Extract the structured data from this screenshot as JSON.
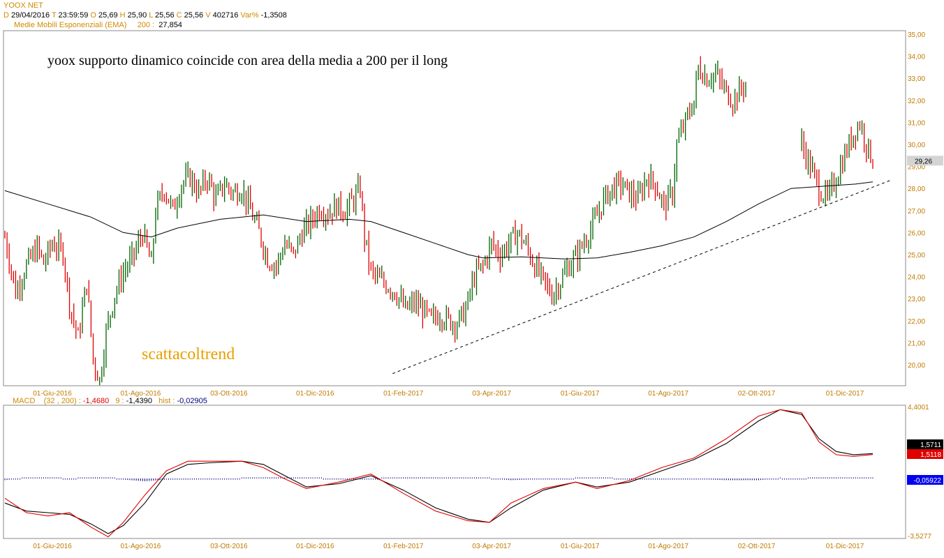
{
  "header": {
    "symbol": "YOOX NET",
    "d_label": "D",
    "date": "29/04/2016",
    "t_label": "T",
    "time": "23:59:59",
    "o_label": "O",
    "open": "25,69",
    "h_label": "H",
    "high": "25,90",
    "l_label": "L",
    "low": "25,56",
    "c_label": "C",
    "close": "25,56",
    "v_label": "V",
    "volume": "402716",
    "var_label": "Var%",
    "var": "-1,3508",
    "ema_label": "Medie Mobili Esponenziali (EMA)",
    "ema_period": "200 :",
    "ema_value": "27,854"
  },
  "annotations": {
    "title_text": "yoox supporto dinamico coincide con area della media a 200 per il long",
    "watermark": "scattacoltrend"
  },
  "macd_header": {
    "label": "MACD",
    "params": "(32 , 200) :",
    "macd_value": "-1,4680",
    "signal_label": "9 :",
    "signal_value": "-1,4390",
    "hist_label": "hist :",
    "hist_value": "-0,02905"
  },
  "colors": {
    "up": "#006400",
    "down": "#e00000",
    "ema": "#000000",
    "macd": "#000000",
    "signal": "#e00000",
    "hist": "#000080",
    "axis_text": "#c07a00",
    "last_price_bg": "#d4d4d4"
  },
  "chart_data": [
    {
      "type": "candlestick",
      "title": "",
      "x_tick_labels": [
        "01-Giu-2016",
        "01-Ago-2016",
        "03-Ott-2016",
        "01-Dic-2016",
        "01-Feb-2017",
        "03-Apr-2017",
        "01-Giu-2017",
        "01-Ago-2017",
        "02-Ott-2017",
        "01-Dic-2017"
      ],
      "y_tick_labels": [
        "20,00",
        "21,00",
        "22,00",
        "23,00",
        "24,00",
        "25,00",
        "26,00",
        "27,00",
        "28,00",
        "29,00",
        "30,00",
        "31,00",
        "32,00",
        "33,00",
        "34,00",
        "35,00"
      ],
      "ylim": [
        19.0,
        35.0
      ],
      "last_price_label": "29,26",
      "close_path": [
        [
          0,
          25.8
        ],
        [
          5,
          23.3
        ],
        [
          10,
          24.5
        ],
        [
          15,
          25.3
        ],
        [
          18,
          24.6
        ],
        [
          22,
          25.5
        ],
        [
          27,
          25.1
        ],
        [
          30,
          22.8
        ],
        [
          34,
          21.2
        ],
        [
          38,
          23.8
        ],
        [
          41,
          20.2
        ],
        [
          44,
          19.3
        ],
        [
          47,
          21.5
        ],
        [
          51,
          23.2
        ],
        [
          55,
          24.2
        ],
        [
          60,
          25.0
        ],
        [
          64,
          26.0
        ],
        [
          68,
          24.5
        ],
        [
          70,
          27.0
        ],
        [
          74,
          28.0
        ],
        [
          78,
          27.0
        ],
        [
          82,
          28.2
        ],
        [
          86,
          28.5
        ],
        [
          90,
          27.8
        ],
        [
          94,
          28.5
        ],
        [
          98,
          27.5
        ],
        [
          102,
          28.2
        ],
        [
          106,
          27.8
        ],
        [
          110,
          28.0
        ],
        [
          114,
          27.0
        ],
        [
          118,
          26.0
        ],
        [
          122,
          24.8
        ],
        [
          126,
          24.5
        ],
        [
          130,
          25.5
        ],
        [
          134,
          25.0
        ],
        [
          138,
          26.0
        ],
        [
          142,
          26.5
        ],
        [
          146,
          27.1
        ],
        [
          150,
          26.9
        ],
        [
          154,
          27.2
        ],
        [
          158,
          27.0
        ],
        [
          162,
          27.5
        ],
        [
          165,
          28.0
        ],
        [
          167,
          25.8
        ],
        [
          170,
          24.2
        ],
        [
          174,
          23.8
        ],
        [
          178,
          23.6
        ],
        [
          182,
          23.2
        ],
        [
          186,
          22.5
        ],
        [
          190,
          22.8
        ],
        [
          194,
          22.5
        ],
        [
          198,
          22.0
        ],
        [
          202,
          22.3
        ],
        [
          206,
          22.0
        ],
        [
          210,
          21.9
        ],
        [
          214,
          22.5
        ],
        [
          218,
          24.0
        ],
        [
          222,
          24.5
        ],
        [
          226,
          25.5
        ],
        [
          230,
          25.0
        ],
        [
          234,
          25.5
        ],
        [
          238,
          26.0
        ],
        [
          242,
          25.4
        ],
        [
          246,
          24.5
        ],
        [
          250,
          23.8
        ],
        [
          254,
          23.2
        ],
        [
          258,
          23.8
        ],
        [
          262,
          24.5
        ],
        [
          266,
          25.0
        ],
        [
          270,
          25.8
        ],
        [
          274,
          26.5
        ],
        [
          278,
          27.5
        ],
        [
          282,
          28.0
        ],
        [
          286,
          28.2
        ],
        [
          290,
          27.8
        ],
        [
          294,
          27.5
        ],
        [
          298,
          28.5
        ],
        [
          302,
          28.2
        ],
        [
          306,
          27.2
        ],
        [
          310,
          27.8
        ],
        [
          312,
          30.0
        ],
        [
          316,
          31.0
        ],
        [
          320,
          32.0
        ],
        [
          322,
          33.5
        ],
        [
          326,
          33.0
        ],
        [
          330,
          33.2
        ],
        [
          334,
          32.5
        ],
        [
          338,
          32.0
        ],
        [
          342,
          32.5
        ],
        [
          344,
          32.8
        ]
      ],
      "close_path_2": [
        [
          370,
          30.0
        ],
        [
          374,
          29.0
        ],
        [
          378,
          28.0
        ],
        [
          382,
          27.5
        ],
        [
          386,
          28.5
        ],
        [
          390,
          29.5
        ],
        [
          394,
          30.5
        ],
        [
          397,
          31.0
        ],
        [
          400,
          30.0
        ],
        [
          403,
          29.3
        ]
      ],
      "ema200": [
        [
          0,
          27.9
        ],
        [
          20,
          27.3
        ],
        [
          40,
          26.7
        ],
        [
          55,
          26.0
        ],
        [
          68,
          25.8
        ],
        [
          80,
          26.2
        ],
        [
          100,
          26.6
        ],
        [
          120,
          26.8
        ],
        [
          140,
          26.5
        ],
        [
          160,
          26.6
        ],
        [
          170,
          26.5
        ],
        [
          185,
          26.0
        ],
        [
          200,
          25.5
        ],
        [
          215,
          25.0
        ],
        [
          222,
          24.85
        ],
        [
          240,
          24.9
        ],
        [
          260,
          24.8
        ],
        [
          275,
          24.85
        ],
        [
          290,
          25.1
        ],
        [
          305,
          25.4
        ],
        [
          320,
          25.8
        ],
        [
          335,
          26.5
        ],
        [
          350,
          27.3
        ],
        [
          365,
          28.0
        ],
        [
          380,
          28.1
        ],
        [
          395,
          28.2
        ],
        [
          403,
          28.3
        ]
      ],
      "trendline": [
        [
          180,
          19.6
        ],
        [
          412,
          28.4
        ]
      ]
    },
    {
      "type": "line",
      "title": "",
      "x_tick_labels": [
        "01-Giu-2016",
        "01-Ago-2016",
        "03-Ott-2016",
        "01-Dic-2016",
        "01-Feb-2017",
        "03-Apr-2017",
        "01-Giu-2017",
        "01-Ago-2017",
        "02-Ott-2017",
        "01-Dic-2017"
      ],
      "y_tick_labels": [
        "4,4001",
        "-3,5277"
      ],
      "ylim": [
        -3.5277,
        4.4001
      ],
      "right_labels": [
        "1,5711",
        "1,5118",
        "-0,05922"
      ],
      "series": [
        {
          "name": "",
          "values": [
            [
              0,
              -1.5
            ],
            [
              10,
              -2.0
            ],
            [
              20,
              -2.1
            ],
            [
              30,
              -2.2
            ],
            [
              40,
              -2.8
            ],
            [
              48,
              -3.4
            ],
            [
              55,
              -2.9
            ],
            [
              65,
              -1.5
            ],
            [
              75,
              0.3
            ],
            [
              85,
              0.9
            ],
            [
              95,
              1.0
            ],
            [
              110,
              1.1
            ],
            [
              120,
              0.9
            ],
            [
              130,
              0.2
            ],
            [
              140,
              -0.5
            ],
            [
              155,
              -0.3
            ],
            [
              170,
              0.2
            ],
            [
              185,
              -0.7
            ],
            [
              200,
              -1.8
            ],
            [
              215,
              -2.5
            ],
            [
              225,
              -2.7
            ],
            [
              235,
              -1.8
            ],
            [
              250,
              -0.7
            ],
            [
              265,
              -0.2
            ],
            [
              275,
              -0.5
            ],
            [
              290,
              -0.2
            ],
            [
              305,
              0.5
            ],
            [
              320,
              1.2
            ],
            [
              335,
              2.2
            ],
            [
              350,
              3.6
            ],
            [
              360,
              4.3
            ],
            [
              370,
              4.0
            ],
            [
              378,
              2.5
            ],
            [
              386,
              1.7
            ],
            [
              394,
              1.5
            ],
            [
              403,
              1.57
            ]
          ]
        },
        {
          "name": "",
          "values": [
            [
              0,
              -1.2
            ],
            [
              10,
              -2.1
            ],
            [
              20,
              -2.3
            ],
            [
              30,
              -2.1
            ],
            [
              40,
              -3.0
            ],
            [
              48,
              -3.6
            ],
            [
              55,
              -2.7
            ],
            [
              65,
              -1.0
            ],
            [
              75,
              0.5
            ],
            [
              85,
              1.1
            ],
            [
              95,
              1.1
            ],
            [
              110,
              1.1
            ],
            [
              120,
              0.7
            ],
            [
              130,
              0.0
            ],
            [
              140,
              -0.6
            ],
            [
              155,
              -0.2
            ],
            [
              170,
              0.3
            ],
            [
              185,
              -0.9
            ],
            [
              200,
              -2.0
            ],
            [
              215,
              -2.6
            ],
            [
              225,
              -2.7
            ],
            [
              235,
              -1.5
            ],
            [
              250,
              -0.6
            ],
            [
              265,
              -0.2
            ],
            [
              275,
              -0.6
            ],
            [
              290,
              -0.1
            ],
            [
              305,
              0.7
            ],
            [
              320,
              1.3
            ],
            [
              335,
              2.5
            ],
            [
              350,
              3.9
            ],
            [
              360,
              4.3
            ],
            [
              370,
              4.1
            ],
            [
              378,
              2.3
            ],
            [
              386,
              1.5
            ],
            [
              394,
              1.4
            ],
            [
              403,
              1.51
            ]
          ]
        }
      ],
      "histogram_label": "-0,05922"
    }
  ]
}
